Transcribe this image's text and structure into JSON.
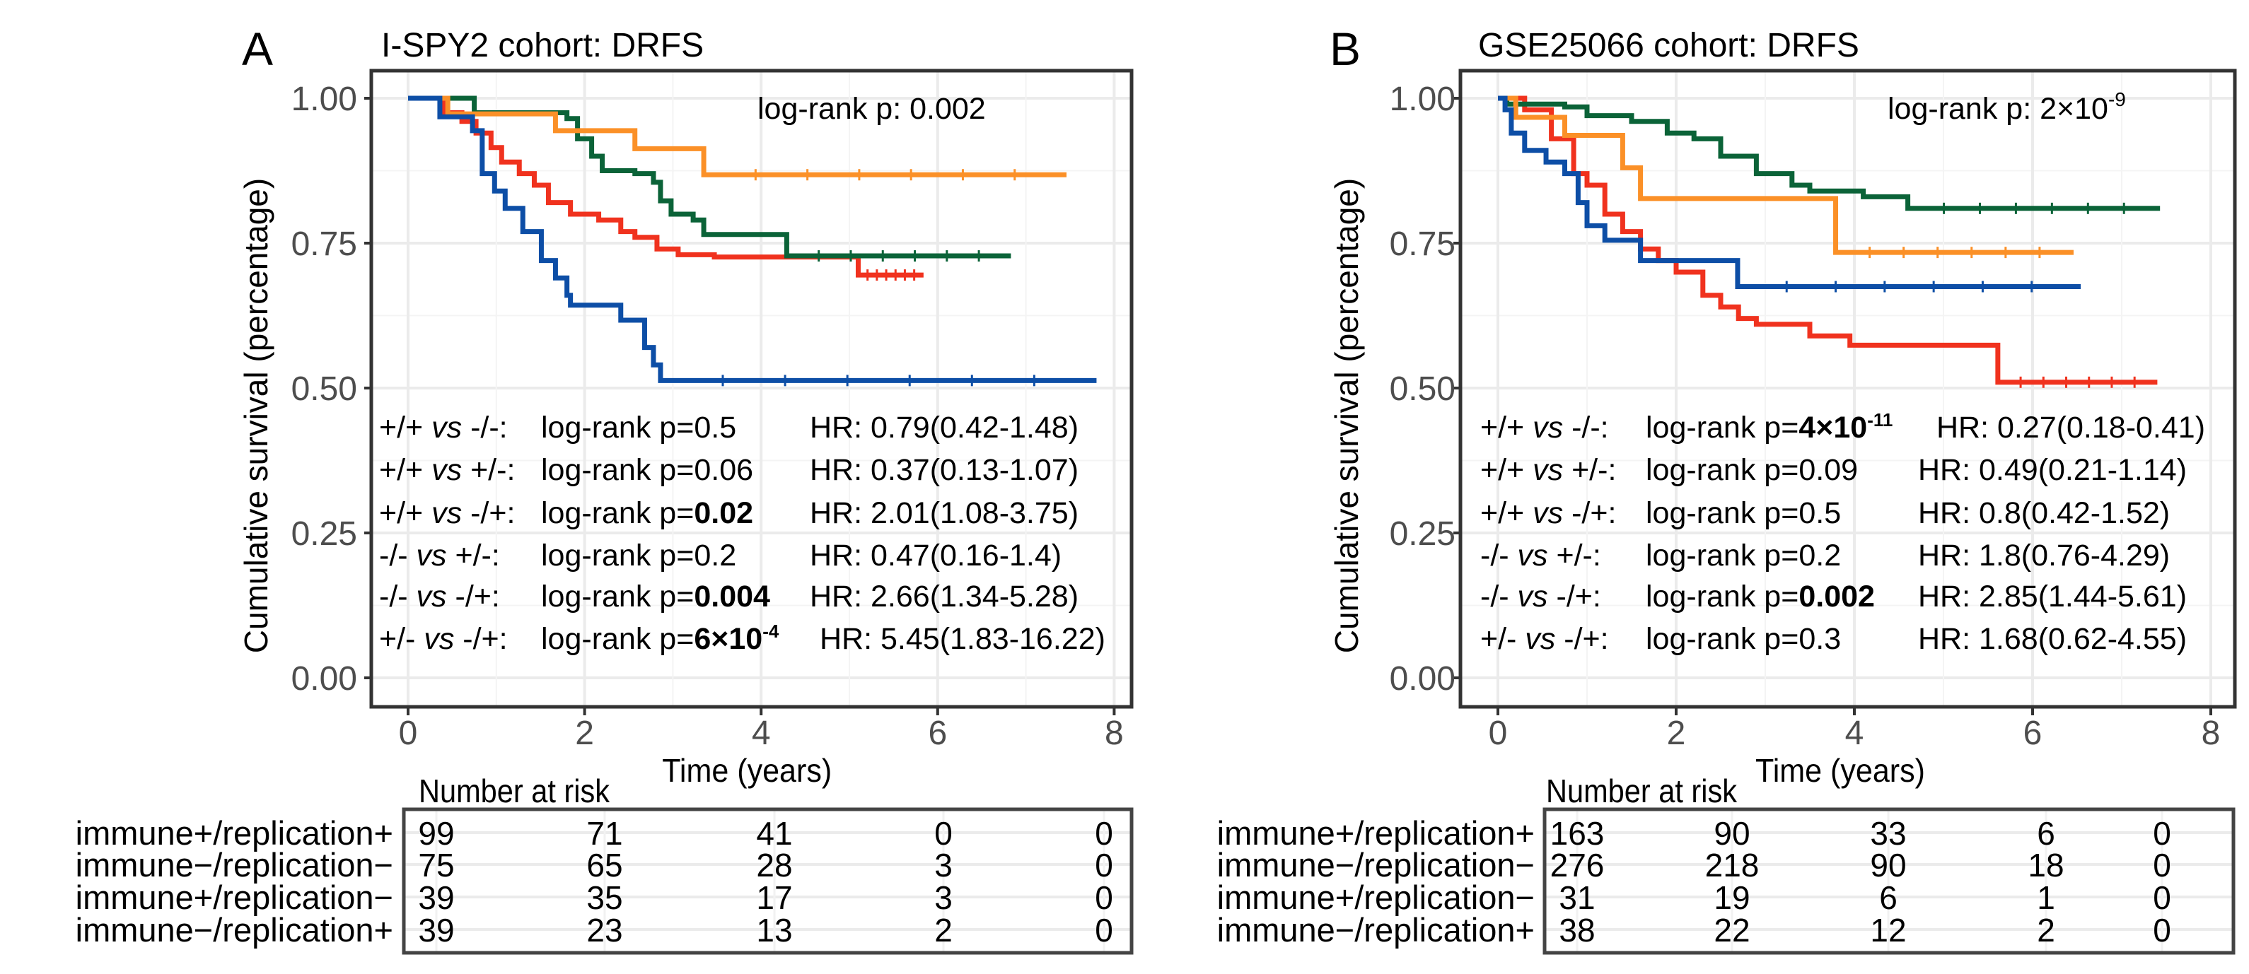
{
  "colors": {
    "immune+/replication+": "#f0321e",
    "immune-/replication-": "#0b6338",
    "immune+/replication-": "#fb9027",
    "immune-/replication+": "#0d4ea6"
  },
  "chart_data": [
    {
      "type": "line",
      "panel_letter": "A",
      "title": "I-SPY2 cohort: DRFS",
      "xlabel": "Time (years)",
      "ylabel": "Cumulative survival (percentage)",
      "xlim": [
        0,
        8
      ],
      "ylim": [
        0,
        1
      ],
      "xticks": [
        "0",
        "2",
        "4",
        "6",
        "8"
      ],
      "yticks": [
        "0.00",
        "0.25",
        "0.50",
        "0.75",
        "1.00"
      ],
      "grid": true,
      "overall_p": {
        "prefix": "log-rank p: ",
        "value": "0.002",
        "exp": null
      },
      "series": [
        {
          "name": "immune+/replication+",
          "end": 5.84,
          "points": [
            [
              0,
              1
            ],
            [
              0.4,
              0.975
            ],
            [
              0.61,
              0.96
            ],
            [
              0.77,
              0.94
            ],
            [
              0.94,
              0.915
            ],
            [
              1.06,
              0.89
            ],
            [
              1.26,
              0.87
            ],
            [
              1.43,
              0.85
            ],
            [
              1.59,
              0.82
            ],
            [
              1.84,
              0.8
            ],
            [
              2.16,
              0.79
            ],
            [
              2.41,
              0.77
            ],
            [
              2.57,
              0.76
            ],
            [
              2.82,
              0.74
            ],
            [
              3.06,
              0.73
            ],
            [
              3.47,
              0.726
            ],
            [
              5.1,
              0.695
            ]
          ]
        },
        {
          "name": "immune-/replication-",
          "end": 6.83,
          "points": [
            [
              0,
              1
            ],
            [
              0.75,
              0.975
            ],
            [
              1.8,
              0.965
            ],
            [
              1.92,
              0.93
            ],
            [
              2.08,
              0.9
            ],
            [
              2.2,
              0.875
            ],
            [
              2.57,
              0.87
            ],
            [
              2.78,
              0.855
            ],
            [
              2.86,
              0.823
            ],
            [
              2.98,
              0.8
            ],
            [
              3.23,
              0.79
            ],
            [
              3.35,
              0.765
            ],
            [
              4.29,
              0.728
            ]
          ]
        },
        {
          "name": "immune+/replication-",
          "end": 7.46,
          "points": [
            [
              0,
              1
            ],
            [
              0.45,
              0.973
            ],
            [
              1.67,
              0.944
            ],
            [
              2.57,
              0.913
            ],
            [
              3.35,
              0.868
            ]
          ]
        },
        {
          "name": "immune-/replication+",
          "end": 7.8,
          "points": [
            [
              0,
              1
            ],
            [
              0.36,
              0.968
            ],
            [
              0.73,
              0.944
            ],
            [
              0.84,
              0.87
            ],
            [
              0.98,
              0.84
            ],
            [
              1.1,
              0.81
            ],
            [
              1.3,
              0.77
            ],
            [
              1.51,
              0.72
            ],
            [
              1.67,
              0.69
            ],
            [
              1.8,
              0.66
            ],
            [
              1.84,
              0.643
            ],
            [
              2.41,
              0.617
            ],
            [
              2.68,
              0.57
            ],
            [
              2.78,
              0.54
            ],
            [
              2.86,
              0.513
            ]
          ]
        }
      ],
      "comparisons": [
        {
          "a": "+/+ ",
          "vs": "vs",
          "b": " -/-:",
          "prefix": "log-rank p=",
          "p": "0.5",
          "bold": false,
          "exp": null,
          "hr": "HR: 0.79(0.42-1.48)"
        },
        {
          "a": "+/+ ",
          "vs": "vs",
          "b": " +/-:",
          "prefix": "log-rank p=",
          "p": "0.06",
          "bold": false,
          "exp": null,
          "hr": "HR: 0.37(0.13-1.07)"
        },
        {
          "a": "+/+ ",
          "vs": "vs",
          "b": " -/+:",
          "prefix": "log-rank p=",
          "p": "0.02",
          "bold": true,
          "exp": null,
          "hr": "HR: 2.01(1.08-3.75)"
        },
        {
          "a": "-/- ",
          "vs": "vs",
          "b": " +/-:",
          "prefix": "log-rank p=",
          "p": "0.2",
          "bold": false,
          "exp": null,
          "hr": "HR: 0.47(0.16-1.4)"
        },
        {
          "a": "-/- ",
          "vs": "vs",
          "b": " -/+:",
          "prefix": "log-rank p=",
          "p": "0.004",
          "bold": true,
          "exp": null,
          "hr": "HR: 2.66(1.34-5.28)"
        },
        {
          "a": "+/- ",
          "vs": "vs",
          "b": " -/+:",
          "prefix": "log-rank p=",
          "p": "6×10",
          "bold": true,
          "exp": "-4",
          "hr": "HR: 5.45(1.83-16.22)"
        }
      ],
      "risk_table": {
        "title": "Number at risk",
        "times": [
          0,
          2,
          4,
          6,
          8
        ],
        "rows": [
          {
            "name": "immune+/replication+",
            "values": [
              "99",
              "71",
              "41",
              "0",
              "0"
            ]
          },
          {
            "name": "immune−/replication−",
            "values": [
              "75",
              "65",
              "28",
              "3",
              "0"
            ]
          },
          {
            "name": "immune+/replication−",
            "values": [
              "39",
              "35",
              "17",
              "3",
              "0"
            ]
          },
          {
            "name": "immune−/replication+",
            "values": [
              "39",
              "23",
              "13",
              "2",
              "0"
            ]
          }
        ]
      }
    },
    {
      "type": "line",
      "panel_letter": "B",
      "title": "GSE25066 cohort: DRFS",
      "xlabel": "Time (years)",
      "ylabel": "Cumulative survival (percentage)",
      "xlim": [
        0,
        8
      ],
      "ylim": [
        0,
        1
      ],
      "xticks": [
        "0",
        "2",
        "4",
        "6",
        "8"
      ],
      "yticks": [
        "0.00",
        "0.25",
        "0.50",
        "0.75",
        "1.00"
      ],
      "grid": true,
      "overall_p": {
        "prefix": "log-rank p: ",
        "value": "2×10",
        "exp": "-9"
      },
      "series": [
        {
          "name": "immune+/replication+",
          "end": 7.4,
          "points": [
            [
              0,
              1
            ],
            [
              0.3,
              0.98
            ],
            [
              0.6,
              0.93
            ],
            [
              0.85,
              0.87
            ],
            [
              1.0,
              0.85
            ],
            [
              1.2,
              0.8
            ],
            [
              1.4,
              0.77
            ],
            [
              1.6,
              0.74
            ],
            [
              1.8,
              0.72
            ],
            [
              2.0,
              0.7
            ],
            [
              2.3,
              0.66
            ],
            [
              2.5,
              0.64
            ],
            [
              2.7,
              0.62
            ],
            [
              2.9,
              0.61
            ],
            [
              3.5,
              0.59
            ],
            [
              3.95,
              0.574
            ],
            [
              5.61,
              0.51
            ]
          ]
        },
        {
          "name": "immune-/replication-",
          "end": 7.43,
          "points": [
            [
              0,
              1
            ],
            [
              0.1,
              0.99
            ],
            [
              0.75,
              0.985
            ],
            [
              1.0,
              0.97
            ],
            [
              1.5,
              0.96
            ],
            [
              1.9,
              0.94
            ],
            [
              2.2,
              0.93
            ],
            [
              2.5,
              0.9
            ],
            [
              2.9,
              0.87
            ],
            [
              3.3,
              0.85
            ],
            [
              3.5,
              0.84
            ],
            [
              4.1,
              0.83
            ],
            [
              4.6,
              0.81
            ]
          ]
        },
        {
          "name": "immune+/replication-",
          "end": 6.46,
          "points": [
            [
              0,
              1
            ],
            [
              0.2,
              0.967
            ],
            [
              0.75,
              0.936
            ],
            [
              1.4,
              0.88
            ],
            [
              1.6,
              0.827
            ],
            [
              3.79,
              0.734
            ]
          ]
        },
        {
          "name": "immune-/replication+",
          "end": 6.54,
          "points": [
            [
              0,
              1
            ],
            [
              0.08,
              0.98
            ],
            [
              0.15,
              0.94
            ],
            [
              0.3,
              0.91
            ],
            [
              0.54,
              0.89
            ],
            [
              0.75,
              0.87
            ],
            [
              0.9,
              0.82
            ],
            [
              1.0,
              0.78
            ],
            [
              1.2,
              0.755
            ],
            [
              1.6,
              0.72
            ],
            [
              2.69,
              0.675
            ]
          ]
        }
      ],
      "comparisons": [
        {
          "a": "+/+ ",
          "vs": "vs",
          "b": " -/-:",
          "prefix": "log-rank p=",
          "p": "4×10",
          "bold": true,
          "exp": "-11",
          "hr": "HR: 0.27(0.18-0.41)"
        },
        {
          "a": "+/+ ",
          "vs": "vs",
          "b": " +/-:",
          "prefix": "log-rank p=",
          "p": "0.09",
          "bold": false,
          "exp": null,
          "hr": "HR: 0.49(0.21-1.14)"
        },
        {
          "a": "+/+ ",
          "vs": "vs",
          "b": " -/+:",
          "prefix": "log-rank p=",
          "p": "0.5",
          "bold": false,
          "exp": null,
          "hr": "HR: 0.8(0.42-1.52)"
        },
        {
          "a": "-/- ",
          "vs": "vs",
          "b": " +/-:",
          "prefix": "log-rank p=",
          "p": "0.2",
          "bold": false,
          "exp": null,
          "hr": "HR: 1.8(0.76-4.29)"
        },
        {
          "a": "-/- ",
          "vs": "vs",
          "b": " -/+:",
          "prefix": "log-rank p=",
          "p": "0.002",
          "bold": true,
          "exp": null,
          "hr": "HR: 2.85(1.44-5.61)"
        },
        {
          "a": "+/- ",
          "vs": "vs",
          "b": " -/+:",
          "prefix": "log-rank p=",
          "p": "0.3",
          "bold": false,
          "exp": null,
          "hr": "HR: 1.68(0.62-4.55)"
        }
      ],
      "risk_table": {
        "title": "Number at risk",
        "times": [
          0,
          2,
          4,
          6,
          8
        ],
        "rows": [
          {
            "name": "immune+/replication+",
            "values": [
              "163",
              "90",
              "33",
              "6",
              "0"
            ]
          },
          {
            "name": "immune−/replication−",
            "values": [
              "276",
              "218",
              "90",
              "18",
              "0"
            ]
          },
          {
            "name": "immune+/replication−",
            "values": [
              "31",
              "19",
              "6",
              "1",
              "0"
            ]
          },
          {
            "name": "immune−/replication+",
            "values": [
              "38",
              "22",
              "12",
              "2",
              "0"
            ]
          }
        ]
      }
    }
  ]
}
